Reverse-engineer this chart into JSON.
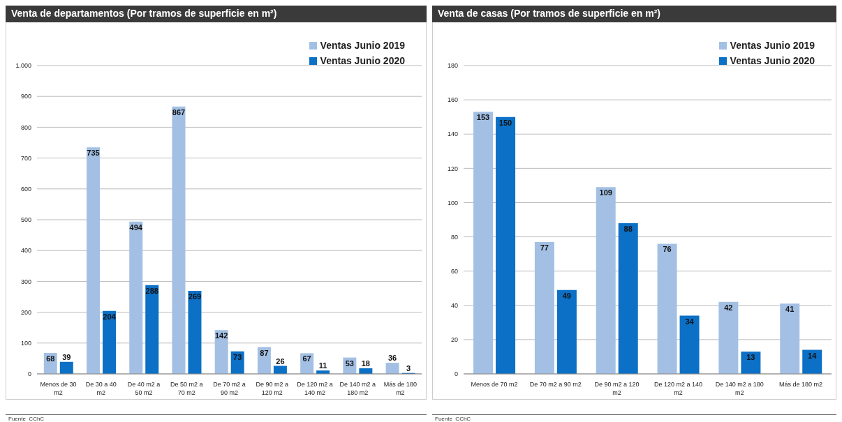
{
  "chart_data": [
    {
      "type": "bar",
      "title": "Venta de departamentos (Por tramos de superficie en m²)",
      "categories": [
        "Menos de 30 m2",
        "De 30 a 40 m2",
        "De 40 m2 a 50 m2",
        "De 50 m2 a 70 m2",
        "De 70 m2 a 90 m2",
        "De 90 m2 a 120 m2",
        "De 120 m2 a 140 m2",
        "De 140 m2 a 180 m2",
        "Más de 180 m2"
      ],
      "series": [
        {
          "name": "Ventas Junio 2019",
          "color": "#a3c0e4",
          "values": [
            68,
            735,
            494,
            867,
            142,
            87,
            67,
            53,
            36
          ]
        },
        {
          "name": "Ventas Junio 2020",
          "color": "#0b70c6",
          "values": [
            39,
            204,
            288,
            269,
            73,
            26,
            11,
            18,
            3
          ]
        }
      ],
      "ylim": [
        0,
        1000
      ],
      "yticks": [
        0,
        100,
        200,
        300,
        400,
        500,
        600,
        700,
        800,
        900,
        {
          "value": 1000,
          "label": "1.000"
        }
      ],
      "grid": "y",
      "legend": "top right",
      "data_labels": true,
      "annotations": [
        "Fuente  CChC"
      ]
    },
    {
      "type": "bar",
      "title": "Venta de casas (Por tramos de superficie en m²)",
      "categories": [
        "Menos de 70 m2",
        "De 70 m2 a 90 m2",
        "De 90 m2 a 120 m2",
        "De 120 m2 a 140 m2",
        "De 140 m2 a 180 m2",
        "Más de 180 m2"
      ],
      "series": [
        {
          "name": "Ventas Junio 2019",
          "color": "#a3c0e4",
          "values": [
            153,
            77,
            109,
            76,
            42,
            41
          ]
        },
        {
          "name": "Ventas Junio 2020",
          "color": "#0b70c6",
          "values": [
            150,
            49,
            88,
            34,
            13,
            14
          ]
        }
      ],
      "ylim": [
        0,
        180
      ],
      "yticks": [
        0,
        20,
        40,
        60,
        80,
        100,
        120,
        140,
        160,
        180
      ],
      "grid": "y",
      "legend": "top right",
      "data_labels": true,
      "annotations": [
        "Fuente  CChC"
      ]
    }
  ]
}
